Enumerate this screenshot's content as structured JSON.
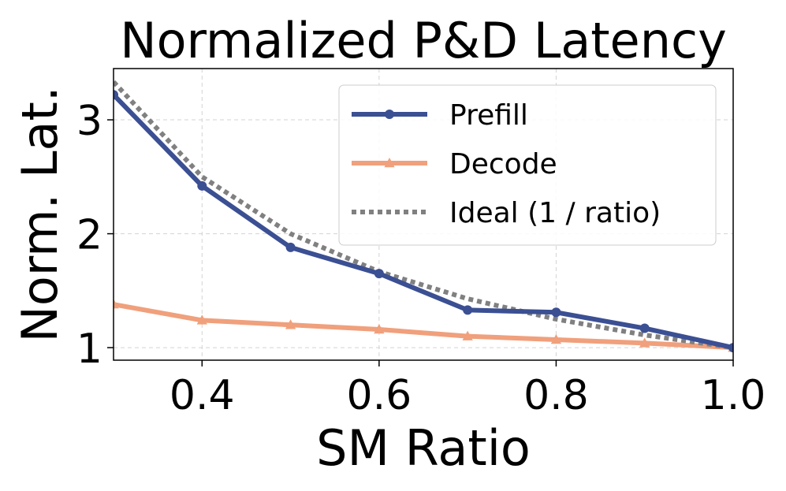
{
  "chart_data": {
    "type": "line",
    "title": "Normalized P&D Latency",
    "xlabel": "SM Ratio",
    "ylabel": "Norm. Lat.",
    "xlim": [
      0.3,
      1.0
    ],
    "ylim": [
      0.89,
      3.45
    ],
    "xticks": [
      0.4,
      0.6,
      0.8,
      1.0
    ],
    "xtick_labels": [
      "0.4",
      "0.6",
      "0.8",
      "1.0"
    ],
    "yticks": [
      1,
      2,
      3
    ],
    "ytick_labels": [
      "1",
      "2",
      "3"
    ],
    "grid": true,
    "legend_position": "top-right",
    "series": [
      {
        "name": "Prefill",
        "color": "#3b4f93",
        "marker": "circle",
        "x": [
          0.3,
          0.4,
          0.5,
          0.6,
          0.7,
          0.8,
          0.9,
          1.0
        ],
        "values": [
          3.22,
          2.42,
          1.88,
          1.65,
          1.33,
          1.31,
          1.17,
          1.0
        ]
      },
      {
        "name": "Decode",
        "color": "#f0a07c",
        "marker": "triangle",
        "x": [
          0.3,
          0.4,
          0.5,
          0.6,
          0.7,
          0.8,
          0.9,
          1.0
        ],
        "values": [
          1.38,
          1.24,
          1.2,
          1.16,
          1.1,
          1.07,
          1.04,
          1.0
        ]
      },
      {
        "name": "Ideal (1 / ratio)",
        "color": "#808080",
        "marker": "none",
        "linestyle": "dotted",
        "x": [
          0.3,
          0.4,
          0.5,
          0.6,
          0.7,
          0.8,
          0.9,
          1.0
        ],
        "values": [
          3.333,
          2.5,
          2.0,
          1.667,
          1.429,
          1.25,
          1.111,
          1.0
        ]
      }
    ]
  }
}
